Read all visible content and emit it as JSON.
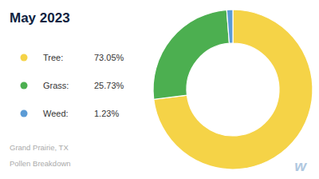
{
  "chart_data": {
    "type": "pie",
    "title": "May 2023",
    "categories": [
      "Tree:",
      "Grass:",
      "Weed:"
    ],
    "values": [
      73.05,
      25.73,
      1.23
    ],
    "value_labels": [
      "73.05%",
      "25.73%",
      "1.23%"
    ],
    "colors": [
      "#f5d347",
      "#4caf50",
      "#5b9bd5"
    ],
    "legend": "left",
    "annotations": [
      "Grand Prairie, TX",
      "Pollen Breakdown",
      "w"
    ]
  }
}
